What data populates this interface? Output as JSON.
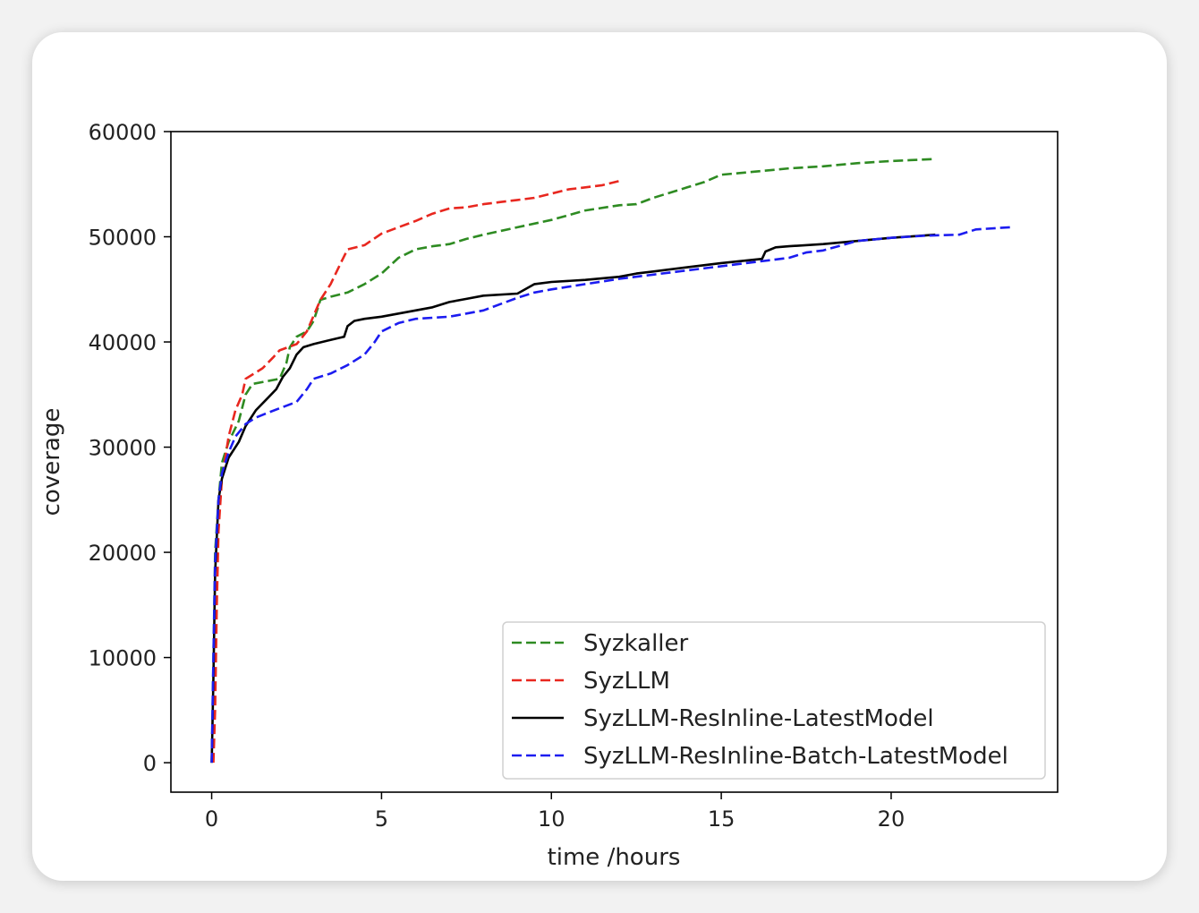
{
  "chart_data": {
    "type": "line",
    "title": "",
    "xlabel": "time /hours",
    "ylabel": "coverage",
    "xlim": [
      -1.2,
      24.9
    ],
    "ylim": [
      -2800,
      60000
    ],
    "xticks": [
      0,
      5,
      10,
      15,
      20
    ],
    "xtick_labels": [
      "0",
      "5",
      "10",
      "15",
      "20"
    ],
    "yticks": [
      0,
      10000,
      20000,
      30000,
      40000,
      50000,
      60000
    ],
    "ytick_labels": [
      "0",
      "10000",
      "20000",
      "30000",
      "40000",
      "50000",
      "60000"
    ],
    "grid": false,
    "legend_position": "lower-right",
    "series": [
      {
        "name": "Syzkaller",
        "color": "#2e8b22",
        "style": "dashed",
        "x": [
          0,
          0.05,
          0.1,
          0.2,
          0.3,
          0.5,
          0.8,
          1.0,
          1.2,
          2.0,
          2.2,
          2.3,
          2.5,
          2.8,
          3.0,
          3.2,
          3.5,
          4.0,
          4.5,
          5.0,
          5.5,
          6.0,
          6.5,
          7.0,
          7.5,
          8.0,
          9.0,
          10.0,
          11.0,
          12.0,
          12.5,
          13.0,
          14.0,
          14.5,
          15.0,
          16.0,
          17.0,
          18.0,
          19.0,
          20.0,
          21.3
        ],
        "y": [
          0,
          10000,
          20000,
          25000,
          28500,
          30500,
          32500,
          35000,
          36000,
          36500,
          38000,
          39500,
          40500,
          41000,
          42000,
          44000,
          44300,
          44700,
          45500,
          46500,
          48000,
          48800,
          49100,
          49300,
          49800,
          50200,
          50900,
          51600,
          52500,
          53000,
          53100,
          53700,
          54700,
          55200,
          55900,
          56200,
          56500,
          56700,
          57000,
          57200,
          57400
        ]
      },
      {
        "name": "SyzLLM",
        "color": "#e8271f",
        "style": "dashed",
        "x": [
          0.05,
          0.1,
          0.15,
          0.2,
          0.3,
          0.5,
          0.7,
          0.9,
          1.0,
          1.5,
          1.8,
          2.0,
          2.5,
          2.8,
          3.0,
          3.2,
          3.5,
          3.8,
          4.0,
          4.5,
          5.0,
          5.5,
          6.0,
          6.5,
          7.0,
          7.5,
          8.0,
          8.5,
          9.0,
          9.5,
          10.0,
          10.5,
          11.0,
          11.5,
          12.0
        ],
        "y": [
          0,
          5000,
          15000,
          22000,
          27000,
          31000,
          33500,
          35000,
          36500,
          37500,
          38500,
          39200,
          39800,
          41000,
          42500,
          44000,
          45500,
          47500,
          48800,
          49200,
          50300,
          50900,
          51500,
          52200,
          52700,
          52800,
          53100,
          53300,
          53500,
          53700,
          54100,
          54500,
          54700,
          54900,
          55300
        ]
      },
      {
        "name": "SyzLLM-ResInline-LatestModel",
        "color": "#000000",
        "style": "solid",
        "x": [
          0,
          0.05,
          0.1,
          0.2,
          0.3,
          0.5,
          0.8,
          1.0,
          1.3,
          1.6,
          1.9,
          2.1,
          2.3,
          2.5,
          2.7,
          3.0,
          3.5,
          3.9,
          4.0,
          4.2,
          4.5,
          5.0,
          5.5,
          6.0,
          6.5,
          7.0,
          7.5,
          8.0,
          9.0,
          9.5,
          10.0,
          11.0,
          12.0,
          12.5,
          13.0,
          14.0,
          15.0,
          16.2,
          16.3,
          16.6,
          17.0,
          18.0,
          19.0,
          20.0,
          21.3
        ],
        "y": [
          0,
          8000,
          18000,
          25000,
          27000,
          29000,
          30500,
          32000,
          33500,
          34500,
          35500,
          36700,
          37500,
          38800,
          39500,
          39800,
          40200,
          40500,
          41500,
          42000,
          42200,
          42400,
          42700,
          43000,
          43300,
          43800,
          44100,
          44400,
          44600,
          45500,
          45700,
          45900,
          46200,
          46500,
          46700,
          47100,
          47500,
          47900,
          48600,
          49000,
          49100,
          49300,
          49600,
          49900,
          50200
        ]
      },
      {
        "name": "SyzLLM-ResInline-Batch-LatestModel",
        "color": "#1c1cf0",
        "style": "dashed",
        "x": [
          0,
          0.05,
          0.1,
          0.2,
          0.3,
          0.5,
          0.7,
          1.0,
          1.3,
          1.6,
          2.0,
          2.5,
          2.8,
          3.0,
          3.5,
          4.0,
          4.5,
          4.8,
          5.0,
          5.5,
          6.0,
          7.0,
          8.0,
          8.5,
          9.0,
          9.5,
          10.0,
          11.0,
          12.0,
          13.0,
          14.0,
          15.0,
          16.0,
          17.0,
          17.5,
          18.0,
          19.0,
          20.0,
          21.0,
          22.0,
          22.5,
          23.5
        ],
        "y": [
          0,
          10000,
          19000,
          25000,
          27500,
          29500,
          31000,
          32200,
          32800,
          33200,
          33700,
          34300,
          35500,
          36500,
          37000,
          37800,
          38800,
          40000,
          41000,
          41800,
          42200,
          42400,
          43000,
          43600,
          44200,
          44700,
          45000,
          45500,
          46000,
          46400,
          46800,
          47200,
          47600,
          48000,
          48500,
          48700,
          49600,
          49900,
          50100,
          50200,
          50700,
          50900
        ]
      }
    ]
  }
}
